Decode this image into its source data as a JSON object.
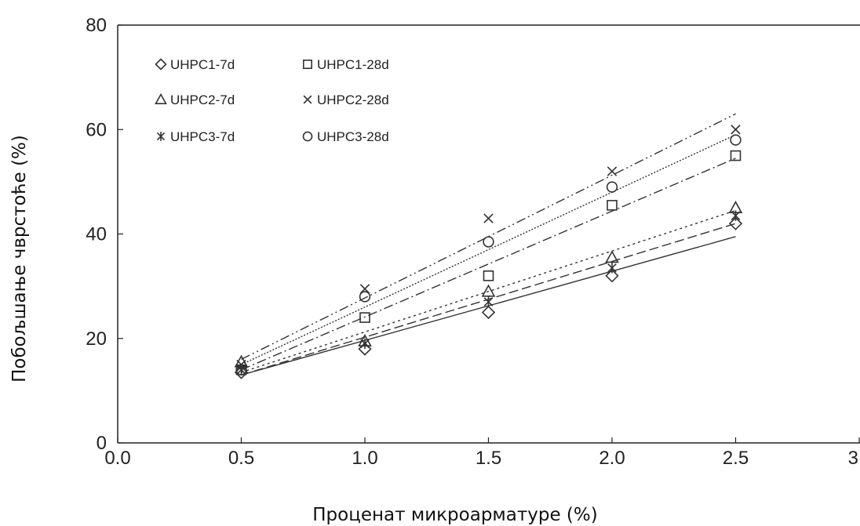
{
  "chart_data": {
    "type": "scatter",
    "title": "",
    "xlabel": "Проценат микроарматуре (%)",
    "ylabel": "Побољшање чврстоће (%)",
    "xlim": [
      0.0,
      3.0
    ],
    "ylim": [
      0,
      80
    ],
    "x_ticks": [
      "0.0",
      "0.5",
      "1.0",
      "1.5",
      "2.0",
      "2.5",
      "3"
    ],
    "y_ticks": [
      "0",
      "20",
      "40",
      "60",
      "80"
    ],
    "grid": false,
    "legend_position": "top-left",
    "x": [
      0.5,
      1.0,
      1.5,
      2.0,
      2.5
    ],
    "series": [
      {
        "name": "UHPC1-7d",
        "marker": "diamond",
        "line_style": "solid",
        "values": [
          13.5,
          18,
          25,
          32,
          42
        ],
        "fit": {
          "x": [
            0.5,
            2.5
          ],
          "y": [
            13,
            39.5
          ]
        }
      },
      {
        "name": "UHPC1-28d",
        "marker": "square",
        "line_style": "dashdot",
        "values": [
          14,
          24,
          32,
          45.5,
          55
        ],
        "fit": {
          "x": [
            0.5,
            2.5
          ],
          "y": [
            14,
            54.5
          ]
        }
      },
      {
        "name": "UHPC2-7d",
        "marker": "triangle",
        "line_style": "dotted",
        "values": [
          15.5,
          19.5,
          29,
          35.5,
          45
        ],
        "fit": {
          "x": [
            0.5,
            2.5
          ],
          "y": [
            13.5,
            44.5
          ]
        }
      },
      {
        "name": "UHPC2-28d",
        "marker": "x",
        "line_style": "dashdotdot",
        "values": [
          15,
          29.5,
          43,
          52,
          60
        ],
        "fit": {
          "x": [
            0.5,
            2.5
          ],
          "y": [
            16,
            63
          ]
        }
      },
      {
        "name": "UHPC3-7d",
        "marker": "asterisk",
        "line_style": "dashed",
        "values": [
          14,
          19,
          27,
          33.5,
          43.5
        ],
        "fit": {
          "x": [
            0.5,
            2.5
          ],
          "y": [
            13,
            42
          ]
        }
      },
      {
        "name": "UHPC3-28d",
        "marker": "circle",
        "line_style": "densedot",
        "values": [
          14,
          28,
          38.5,
          49,
          58
        ],
        "fit": {
          "x": [
            0.5,
            2.5
          ],
          "y": [
            15,
            59
          ]
        }
      }
    ]
  }
}
